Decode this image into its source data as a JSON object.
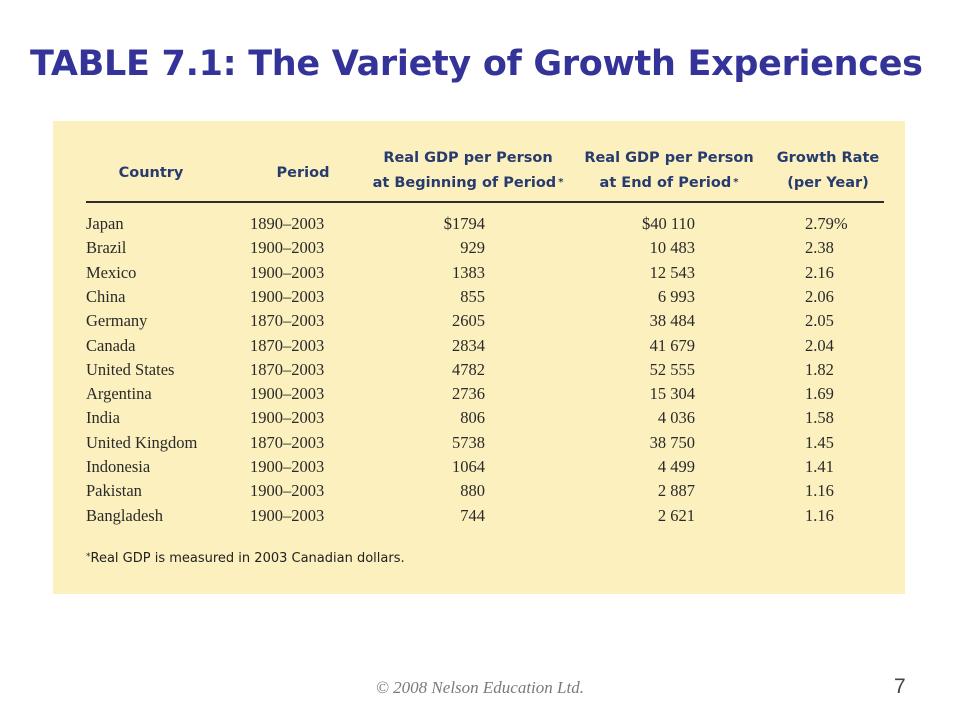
{
  "title": "TABLE 7.1: The Variety of Growth Experiences",
  "table": {
    "headers": {
      "country": "Country",
      "period": "Period",
      "begin_line1": "Real GDP per Person",
      "begin_line2": "at Beginning of Period",
      "begin_marker": "*",
      "end_line1": "Real GDP per Person",
      "end_line2": "at End of Period",
      "end_marker": "*",
      "growth_line1": "Growth Rate",
      "growth_line2": "(per Year)"
    },
    "rows": [
      {
        "country": "Japan",
        "period": "1890–2003",
        "begin": "$1794",
        "end": "$40 110",
        "growth": "2.79%"
      },
      {
        "country": "Brazil",
        "period": "1900–2003",
        "begin": "929",
        "end": "10 483",
        "growth": "2.38"
      },
      {
        "country": "Mexico",
        "period": "1900–2003",
        "begin": "1383",
        "end": "12 543",
        "growth": "2.16"
      },
      {
        "country": "China",
        "period": "1900–2003",
        "begin": "855",
        "end": "6 993",
        "growth": "2.06"
      },
      {
        "country": "Germany",
        "period": "1870–2003",
        "begin": "2605",
        "end": "38 484",
        "growth": "2.05"
      },
      {
        "country": "Canada",
        "period": "1870–2003",
        "begin": "2834",
        "end": "41 679",
        "growth": "2.04"
      },
      {
        "country": "United States",
        "period": "1870–2003",
        "begin": "4782",
        "end": "52 555",
        "growth": "1.82"
      },
      {
        "country": "Argentina",
        "period": "1900–2003",
        "begin": "2736",
        "end": "15 304",
        "growth": "1.69"
      },
      {
        "country": "India",
        "period": "1900–2003",
        "begin": "806",
        "end": "4 036",
        "growth": "1.58"
      },
      {
        "country": "United Kingdom",
        "period": "1870–2003",
        "begin": "5738",
        "end": "38 750",
        "growth": "1.45"
      },
      {
        "country": "Indonesia",
        "period": "1900–2003",
        "begin": "1064",
        "end": "4 499",
        "growth": "1.41"
      },
      {
        "country": "Pakistan",
        "period": "1900–2003",
        "begin": "880",
        "end": "2 887",
        "growth": "1.16"
      },
      {
        "country": "Bangladesh",
        "period": "1900–2003",
        "begin": "744",
        "end": "2 621",
        "growth": "1.16"
      }
    ],
    "footnote_marker": "*",
    "footnote_text": "Real GDP is measured in 2003 Canadian dollars."
  },
  "footer": {
    "copyright": "© 2008 Nelson Education Ltd.",
    "page_number": "7"
  },
  "colors": {
    "title": "#333399",
    "panel_background": "#fbf0be",
    "header_text": "#283b6e"
  }
}
